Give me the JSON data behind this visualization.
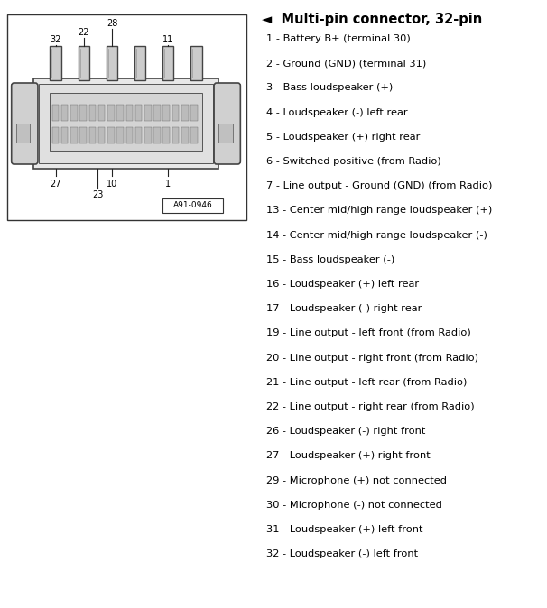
{
  "title": "Multi-pin connector, 32-pin",
  "title_arrow": "◄",
  "pin_entries": [
    "1 - Battery B+ (terminal 30)",
    "2 - Ground (GND) (terminal 31)",
    "3 - Bass loudspeaker (+)",
    "4 - Loudspeaker (-) left rear",
    "5 - Loudspeaker (+) right rear",
    "6 - Switched positive (from Radio)",
    "7 - Line output - Ground (GND) (from Radio)",
    "13 - Center mid/high range loudspeaker (+)",
    "14 - Center mid/high range loudspeaker (-)",
    "15 - Bass loudspeaker (-)",
    "16 - Loudspeaker (+) left rear",
    "17 - Loudspeaker (-) right rear",
    "19 - Line output - left front (from Radio)",
    "20 - Line output - right front (from Radio)",
    "21 - Line output - left rear (from Radio)",
    "22 - Line output - right rear (from Radio)",
    "26 - Loudspeaker (-) right front",
    "27 - Loudspeaker (+) right front",
    "29 - Microphone (+) not connected",
    "30 - Microphone (-) not connected",
    "31 - Loudspeaker (+) left front",
    "32 - Loudspeaker (-) left front"
  ],
  "part_number": "A91-0946",
  "bg_color": "#ffffff",
  "text_color": "#000000",
  "font_size_title": 10.5,
  "font_size_text": 8.2,
  "font_size_label": 7.0,
  "font_size_pn": 6.5
}
